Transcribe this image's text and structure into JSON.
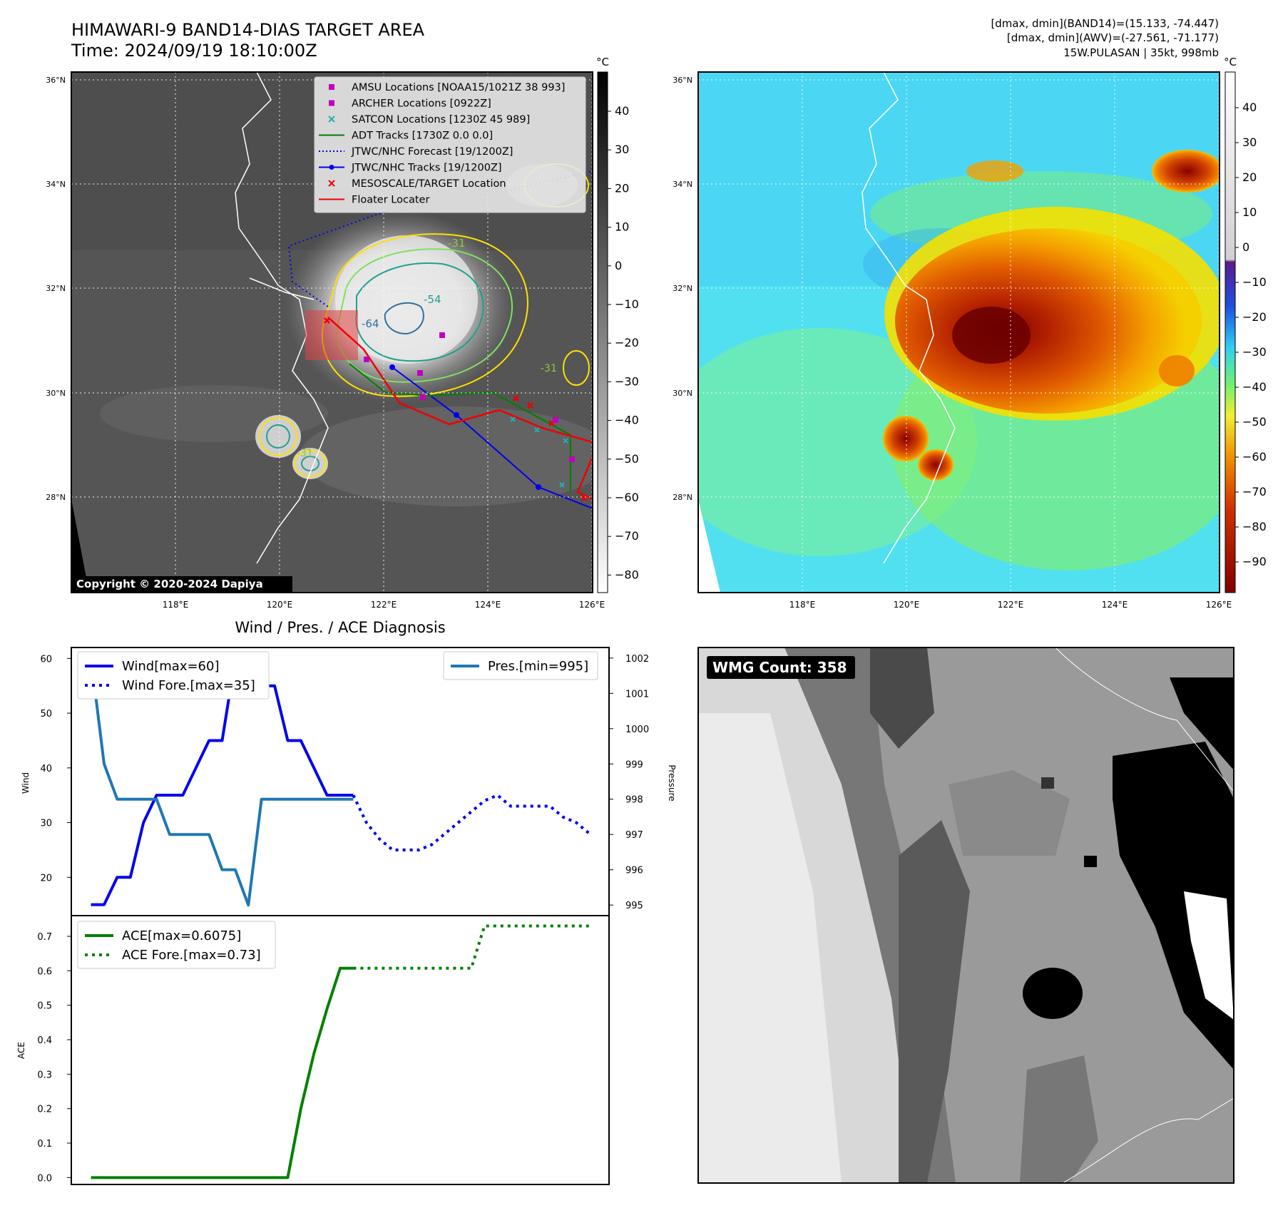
{
  "header": {
    "title_line1": "HIMAWARI-9 BAND14-DIAS TARGET AREA",
    "title_line2": "Time: 2024/09/19 18:10:00Z",
    "info_line1": "[dmax, dmin](BAND14)=(15.133, -74.447)",
    "info_line2": "[dmax, dmin](AWV)=(-27.561, -71.177)",
    "info_line3": "15W.PULASAN | 35kt, 998mb"
  },
  "map_axes": {
    "lat_labels": [
      "36°N",
      "34°N",
      "32°N",
      "30°N",
      "28°N"
    ],
    "lon_labels": [
      "118°E",
      "120°E",
      "122°E",
      "124°E",
      "126°E"
    ],
    "unit": "°C",
    "cbar_left_ticks": [
      "40",
      "30",
      "20",
      "10",
      "0",
      "−10",
      "−20",
      "−30",
      "−40",
      "−50",
      "−60",
      "−70",
      "−80"
    ],
    "cbar_right_ticks": [
      "40",
      "30",
      "20",
      "10",
      "0",
      "−10",
      "−20",
      "−30",
      "−40",
      "−50",
      "−60",
      "−70",
      "−80",
      "−90"
    ],
    "contour_labels": [
      "-31",
      "-54",
      "-64",
      "-31",
      "-31"
    ],
    "copyright": "Copyright © 2020-2024 Dapiya"
  },
  "map_legend": [
    {
      "label": "AMSU Locations [NOAA15/1021Z 38 993]",
      "marker": "square",
      "color": "#c000c0"
    },
    {
      "label": "ARCHER Locations [0922Z]",
      "marker": "square",
      "color": "#c000c0"
    },
    {
      "label": "SATCON Locations [1230Z 45 989]",
      "marker": "x",
      "color": "#20b0b0"
    },
    {
      "label": "ADT Tracks [1730Z 0.0 0.0]",
      "marker": "line",
      "color": "#008000"
    },
    {
      "label": "JTWC/NHC Forecast [19/1200Z]",
      "marker": "dotted",
      "color": "#0000ee"
    },
    {
      "label": "JTWC/NHC Tracks [19/1200Z]",
      "marker": "line-dot",
      "color": "#0000ee"
    },
    {
      "label": "MESOSCALE/TARGET Location",
      "marker": "x",
      "color": "#ee0000"
    },
    {
      "label": "Floater Locater",
      "marker": "line",
      "color": "#ee0000"
    }
  ],
  "wmg": {
    "label": "WMG Count: 358"
  },
  "chart_data": [
    {
      "type": "line",
      "title": "Wind / Pres. / ACE Diagnosis",
      "ylabel": "Wind",
      "ylabel_right": "Pressure",
      "ylim": [
        13,
        62
      ],
      "ylim_right": [
        994.7,
        1002.3
      ],
      "yticks": [
        20,
        30,
        40,
        50,
        60
      ],
      "yticks_right": [
        995,
        996,
        997,
        998,
        999,
        1000,
        1001,
        1002
      ],
      "x": [
        0,
        1,
        2,
        3,
        4,
        5,
        6,
        7,
        8,
        9,
        10,
        11,
        12,
        13,
        14,
        15,
        16,
        17,
        18,
        19,
        20
      ],
      "series": [
        {
          "name": "Wind[max=60]",
          "axis": "left",
          "style": "solid",
          "color": "#0000ee",
          "values": [
            15,
            15,
            20,
            20,
            30,
            35,
            35,
            35,
            40,
            45,
            45,
            60,
            55,
            55,
            55,
            45,
            45,
            40,
            35,
            35,
            35
          ]
        },
        {
          "name": "Wind Fore.[max=35]",
          "axis": "left",
          "style": "dotted",
          "color": "#0000ee",
          "x": [
            20,
            21,
            22,
            23,
            24,
            25,
            26,
            27,
            28,
            29,
            30,
            31,
            32,
            33,
            34,
            35,
            36,
            37,
            38
          ],
          "values": [
            35,
            30,
            27,
            25,
            25,
            25,
            26,
            28,
            30,
            32,
            34,
            35,
            33,
            33,
            33,
            33,
            31,
            30,
            28
          ]
        },
        {
          "name": "Pres.[min=995]",
          "axis": "right",
          "style": "solid",
          "color": "#1f77b4",
          "values": [
            1002,
            999.0,
            998,
            998,
            998,
            998,
            997,
            997,
            997,
            997,
            996,
            996,
            995,
            998,
            998,
            998,
            998,
            998,
            998,
            998,
            998
          ]
        }
      ]
    },
    {
      "type": "line",
      "ylabel": "ACE",
      "ylim": [
        -0.02,
        0.76
      ],
      "yticks": [
        0.0,
        0.1,
        0.2,
        0.3,
        0.4,
        0.5,
        0.6,
        0.7
      ],
      "series": [
        {
          "name": "ACE[max=0.6075]",
          "style": "solid",
          "color": "#008000",
          "x": [
            0,
            2,
            4,
            6,
            8,
            10,
            12,
            14,
            15,
            16,
            17,
            18,
            19,
            20
          ],
          "values": [
            0.0,
            0.0,
            0.0,
            0.0,
            0.0,
            0.0,
            0.0,
            0.0,
            0.0,
            0.2,
            0.36,
            0.49,
            0.6075,
            0.6075
          ]
        },
        {
          "name": "ACE Fore.[max=0.73]",
          "style": "dotted",
          "color": "#008000",
          "x": [
            20,
            24,
            28,
            29,
            30,
            32,
            36,
            38
          ],
          "values": [
            0.6075,
            0.6075,
            0.6075,
            0.6075,
            0.73,
            0.73,
            0.73,
            0.73
          ]
        }
      ]
    }
  ]
}
